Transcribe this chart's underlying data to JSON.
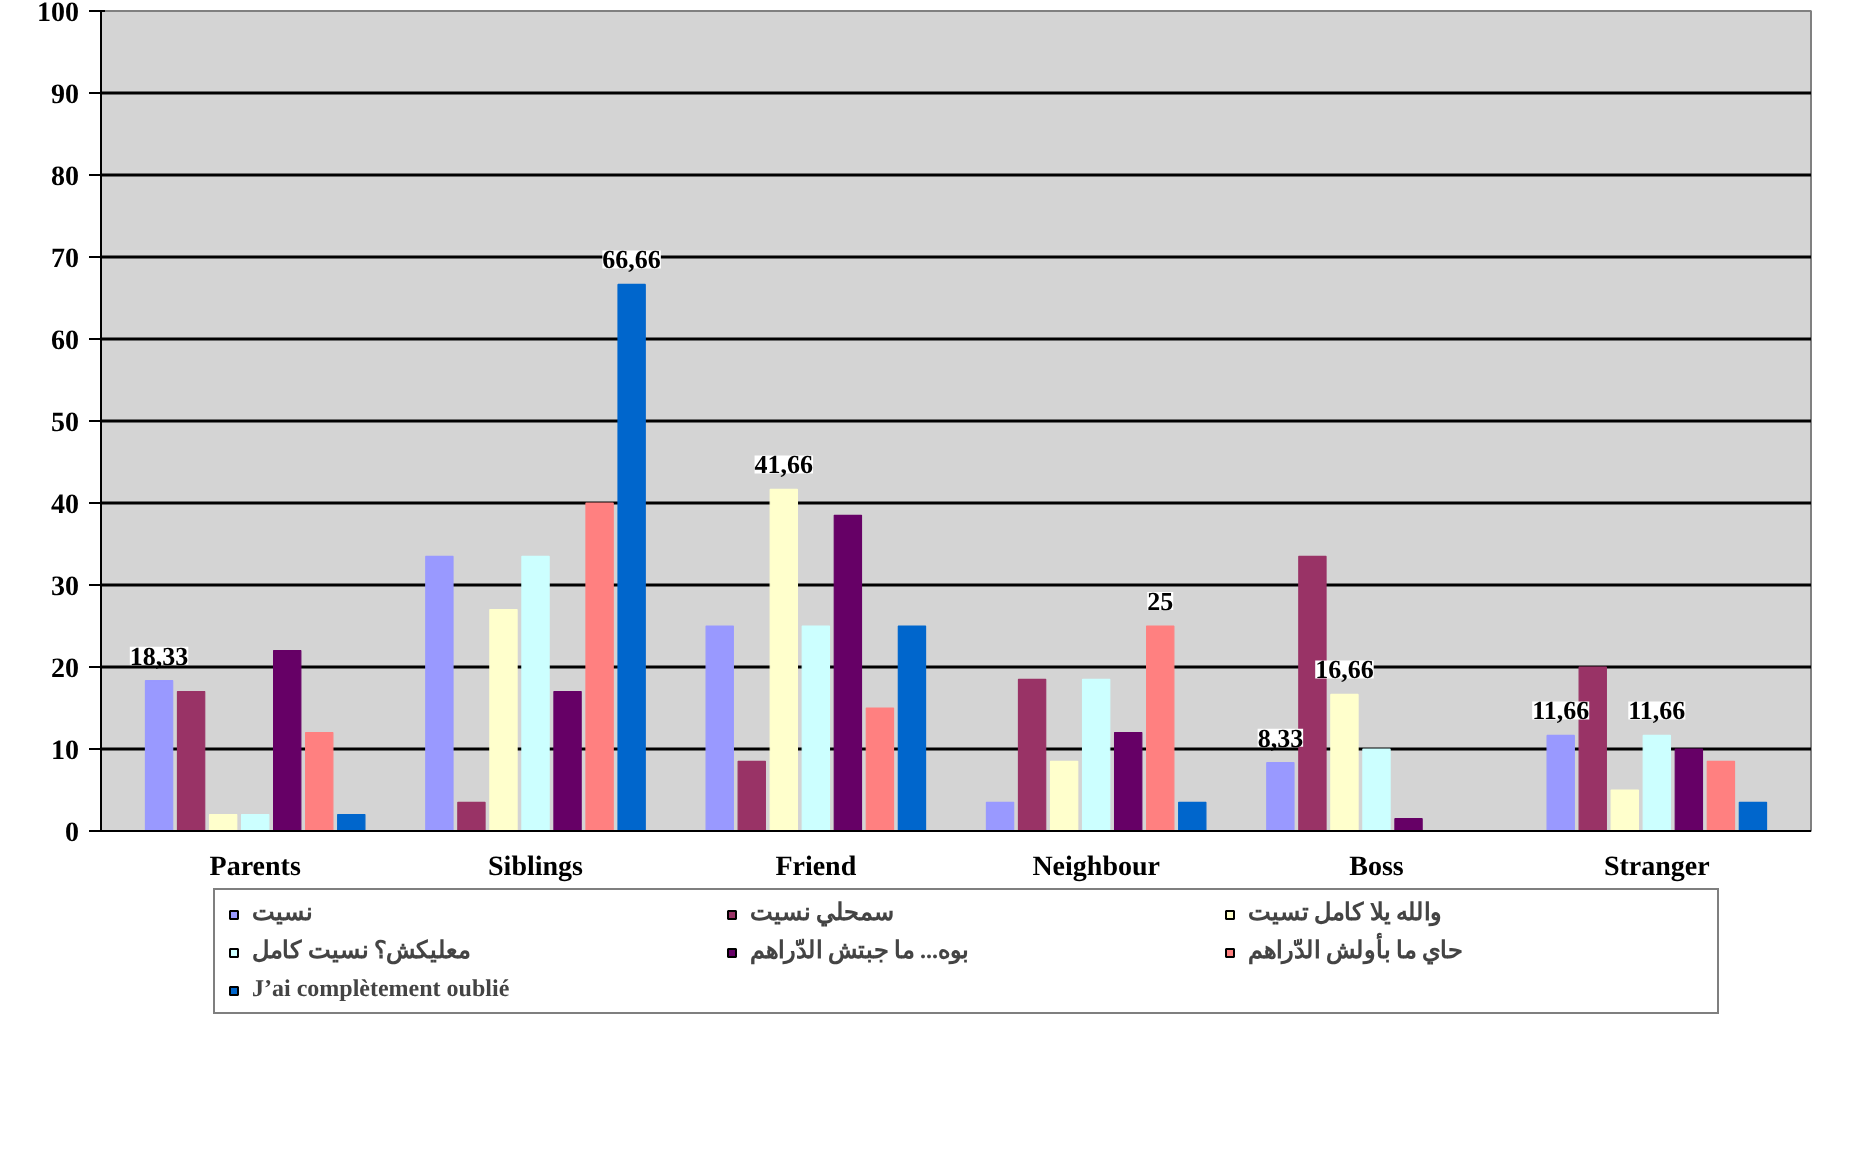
{
  "chart_data": {
    "type": "bar",
    "categories": [
      "Parents",
      "Siblings",
      "Friend",
      "Neighbour",
      "Boss",
      "Stranger"
    ],
    "series": [
      {
        "name": "نسيت",
        "color": "#9999ff",
        "values": [
          18.33,
          33.5,
          25,
          3.5,
          8.33,
          11.66
        ],
        "value_labels": [
          "18,33",
          null,
          null,
          null,
          "8,33",
          "11,66"
        ]
      },
      {
        "name": "سمحلي نسيت",
        "color": "#993366",
        "values": [
          17,
          3.5,
          8.5,
          18.5,
          33.5,
          20
        ],
        "value_labels": [
          null,
          null,
          null,
          null,
          null,
          null
        ]
      },
      {
        "name": "والله يلا كامل تسيت",
        "color": "#ffffcc",
        "values": [
          2,
          27,
          41.66,
          8.5,
          16.66,
          5
        ],
        "value_labels": [
          null,
          null,
          "41,66",
          null,
          "16,66",
          null
        ]
      },
      {
        "name": "معليكش؟ نسيت كامل",
        "color": "#ccffff",
        "values": [
          2,
          33.5,
          25,
          18.5,
          10,
          11.66
        ],
        "value_labels": [
          null,
          null,
          null,
          null,
          null,
          "11,66"
        ]
      },
      {
        "name": "بوه... ما جبتش الدّراهم",
        "color": "#660066",
        "values": [
          22,
          17,
          38.5,
          12,
          1.5,
          10
        ],
        "value_labels": [
          null,
          null,
          null,
          null,
          null,
          null
        ]
      },
      {
        "name": "حاي ما بأولش الدّراهم",
        "color": "#ff8080",
        "values": [
          12,
          40,
          15,
          25,
          0,
          8.5
        ],
        "value_labels": [
          null,
          null,
          null,
          "25",
          null,
          null
        ]
      },
      {
        "name": "J’ai complètement oublié",
        "color": "#0066cc",
        "values": [
          2,
          66.66,
          25,
          3.5,
          0,
          3.5
        ],
        "value_labels": [
          null,
          "66,66",
          null,
          null,
          null,
          null
        ]
      }
    ],
    "ylim": [
      0,
      100
    ],
    "yticks": [
      0,
      10,
      20,
      30,
      40,
      50,
      60,
      70,
      80,
      90,
      100
    ],
    "grid": "y",
    "legend": "bottom"
  }
}
